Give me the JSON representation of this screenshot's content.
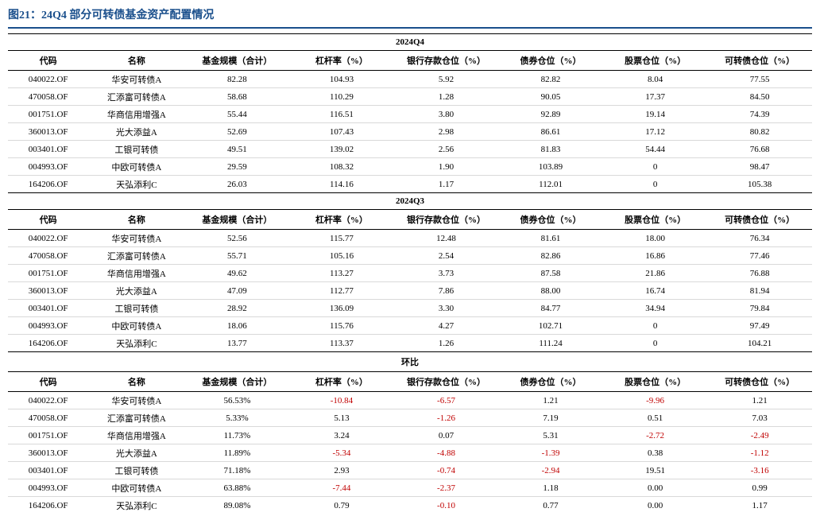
{
  "figure_title": "图21：24Q4 部分可转债基金资产配置情况",
  "columns": [
    "代码",
    "名称",
    "基金规模（合计）",
    "杠杆率（%）",
    "银行存款仓位（%）",
    "债券仓位（%）",
    "股票仓位（%）",
    "可转债仓位（%）"
  ],
  "sections": [
    {
      "title": "2024Q4",
      "rows": [
        [
          "040022.OF",
          "华安可转债A",
          "82.28",
          "104.93",
          "5.92",
          "82.82",
          "8.04",
          "77.55"
        ],
        [
          "470058.OF",
          "汇添富可转债A",
          "58.68",
          "110.29",
          "1.28",
          "90.05",
          "17.37",
          "84.50"
        ],
        [
          "001751.OF",
          "华商信用增强A",
          "55.44",
          "116.51",
          "3.80",
          "92.89",
          "19.14",
          "74.39"
        ],
        [
          "360013.OF",
          "光大添益A",
          "52.69",
          "107.43",
          "2.98",
          "86.61",
          "17.12",
          "80.82"
        ],
        [
          "003401.OF",
          "工银可转债",
          "49.51",
          "139.02",
          "2.56",
          "81.83",
          "54.44",
          "76.68"
        ],
        [
          "004993.OF",
          "中欧可转债A",
          "29.59",
          "108.32",
          "1.90",
          "103.89",
          "0",
          "98.47"
        ],
        [
          "164206.OF",
          "天弘添利C",
          "26.03",
          "114.16",
          "1.17",
          "112.01",
          "0",
          "105.38"
        ]
      ],
      "negatives": []
    },
    {
      "title": "2024Q3",
      "rows": [
        [
          "040022.OF",
          "华安可转债A",
          "52.56",
          "115.77",
          "12.48",
          "81.61",
          "18.00",
          "76.34"
        ],
        [
          "470058.OF",
          "汇添富可转债A",
          "55.71",
          "105.16",
          "2.54",
          "82.86",
          "16.86",
          "77.46"
        ],
        [
          "001751.OF",
          "华商信用增强A",
          "49.62",
          "113.27",
          "3.73",
          "87.58",
          "21.86",
          "76.88"
        ],
        [
          "360013.OF",
          "光大添益A",
          "47.09",
          "112.77",
          "7.86",
          "88.00",
          "16.74",
          "81.94"
        ],
        [
          "003401.OF",
          "工银可转债",
          "28.92",
          "136.09",
          "3.30",
          "84.77",
          "34.94",
          "79.84"
        ],
        [
          "004993.OF",
          "中欧可转债A",
          "18.06",
          "115.76",
          "4.27",
          "102.71",
          "0",
          "97.49"
        ],
        [
          "164206.OF",
          "天弘添利C",
          "13.77",
          "113.37",
          "1.26",
          "111.24",
          "0",
          "104.21"
        ]
      ],
      "negatives": []
    },
    {
      "title": "环比",
      "rows": [
        [
          "040022.OF",
          "华安可转债A",
          "56.53%",
          "-10.84",
          "-6.57",
          "1.21",
          "-9.96",
          "1.21"
        ],
        [
          "470058.OF",
          "汇添富可转债A",
          "5.33%",
          "5.13",
          "-1.26",
          "7.19",
          "0.51",
          "7.03"
        ],
        [
          "001751.OF",
          "华商信用增强A",
          "11.73%",
          "3.24",
          "0.07",
          "5.31",
          "-2.72",
          "-2.49"
        ],
        [
          "360013.OF",
          "光大添益A",
          "11.89%",
          "-5.34",
          "-4.88",
          "-1.39",
          "0.38",
          "-1.12"
        ],
        [
          "003401.OF",
          "工银可转债",
          "71.18%",
          "2.93",
          "-0.74",
          "-2.94",
          "19.51",
          "-3.16"
        ],
        [
          "004993.OF",
          "中欧可转债A",
          "63.88%",
          "-7.44",
          "-2.37",
          "1.18",
          "0.00",
          "0.99"
        ],
        [
          "164206.OF",
          "天弘添利C",
          "89.08%",
          "0.79",
          "-0.10",
          "0.77",
          "0.00",
          "1.17"
        ]
      ],
      "negatives": [
        [
          0,
          3
        ],
        [
          0,
          4
        ],
        [
          0,
          6
        ],
        [
          1,
          4
        ],
        [
          2,
          6
        ],
        [
          2,
          7
        ],
        [
          3,
          3
        ],
        [
          3,
          4
        ],
        [
          3,
          5
        ],
        [
          3,
          7
        ],
        [
          4,
          4
        ],
        [
          4,
          5
        ],
        [
          4,
          7
        ],
        [
          5,
          3
        ],
        [
          5,
          4
        ],
        [
          6,
          4
        ]
      ]
    }
  ],
  "colors": {
    "title": "#1a4f8c",
    "negative": "#c00000",
    "border_light": "#d9d9d9",
    "border_dark": "#000000",
    "text": "#000000",
    "background": "#ffffff"
  },
  "col_widths": [
    "10%",
    "12%",
    "13%",
    "13%",
    "13%",
    "13%",
    "13%",
    "13%"
  ]
}
